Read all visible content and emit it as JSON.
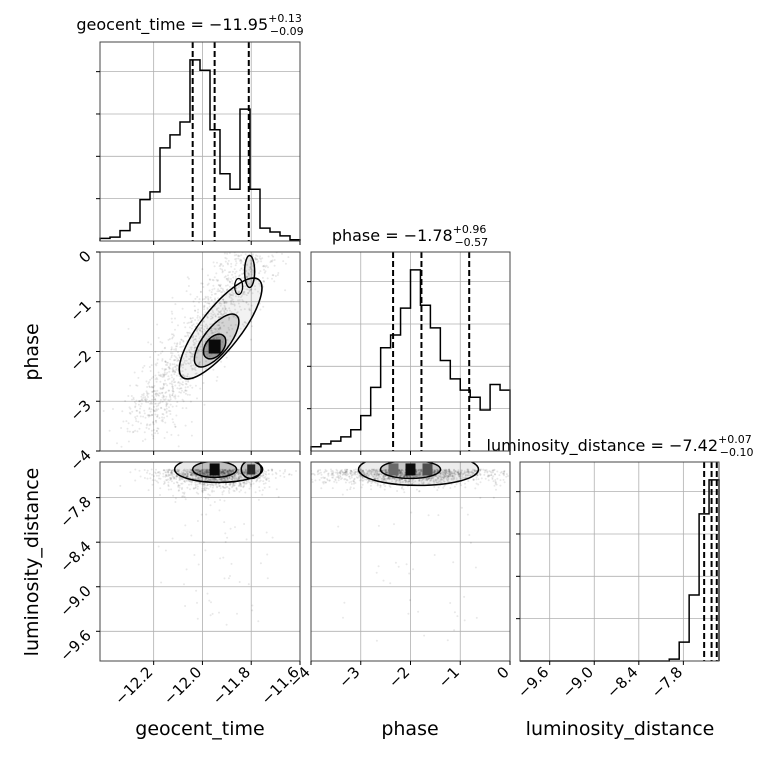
{
  "chart_data": {
    "type": "corner",
    "parameters": [
      "geocent_time",
      "phase",
      "luminosity_distance"
    ],
    "titles": {
      "geocent_time": {
        "name": "geocent_time",
        "median": "−11.95",
        "plus": "+0.13",
        "minus": "−0.09"
      },
      "phase": {
        "name": "phase",
        "median": "−1.78",
        "plus": "+0.96",
        "minus": "−0.57"
      },
      "luminosity_distance": {
        "name": "luminosity_distance",
        "median": "−7.42",
        "plus": "+0.07",
        "minus": "−0.10"
      }
    },
    "axis_labels": {
      "x": [
        "geocent_time",
        "phase",
        "luminosity_distance"
      ],
      "y": [
        "phase",
        "luminosity_distance"
      ]
    },
    "ranges": {
      "geocent_time": [
        -12.42,
        -11.6
      ],
      "phase": [
        -4.0,
        0.0
      ],
      "luminosity_distance": [
        -10.0,
        -7.32
      ]
    },
    "ticks": {
      "geocent_time": [
        -12.2,
        -12.0,
        -11.8,
        -11.6
      ],
      "geocent_time_labels": [
        "−12.2",
        "−12.0",
        "−11.8",
        "−11.6"
      ],
      "phase": [
        -4,
        -3,
        -2,
        -1,
        0
      ],
      "phase_labels": [
        "−4",
        "−3",
        "−2",
        "−1",
        "0"
      ],
      "luminosity_distance": [
        -9.6,
        -9.0,
        -8.4,
        -7.8
      ],
      "luminosity_distance_labels": [
        "−9.6",
        "−9.0",
        "−8.4",
        "−7.8"
      ]
    },
    "quantiles": {
      "geocent_time": [
        -12.04,
        -11.95,
        -11.81
      ],
      "phase": [
        -2.35,
        -1.78,
        -0.82
      ],
      "luminosity_distance": [
        -7.52,
        -7.42,
        -7.35
      ]
    },
    "histograms": {
      "geocent_time": {
        "edges": [
          -12.42,
          -12.379,
          -12.338,
          -12.297,
          -12.256,
          -12.215,
          -12.174,
          -12.133,
          -12.092,
          -12.051,
          -12.01,
          -11.969,
          -11.928,
          -11.887,
          -11.846,
          -11.805,
          -11.764,
          -11.723,
          -11.682,
          -11.641,
          -11.6
        ],
        "counts": [
          0.2,
          0.3,
          0.8,
          1.4,
          3.2,
          3.8,
          7.2,
          8.2,
          9.2,
          14.0,
          13.2,
          8.6,
          5.2,
          4.0,
          10.2,
          4.0,
          1.0,
          0.7,
          0.4,
          0.1
        ]
      },
      "phase": {
        "edges": [
          -4.0,
          -3.8,
          -3.6,
          -3.4,
          -3.2,
          -3.0,
          -2.8,
          -2.6,
          -2.4,
          -2.2,
          -2.0,
          -1.8,
          -1.6,
          -1.4,
          -1.2,
          -1.0,
          -0.8,
          -0.6,
          -0.4,
          -0.2,
          0.0
        ],
        "counts": [
          0.3,
          0.5,
          0.7,
          1.0,
          1.5,
          2.5,
          4.5,
          7.3,
          8.2,
          10.1,
          12.8,
          10.3,
          8.7,
          6.4,
          5.1,
          4.3,
          3.8,
          2.9,
          4.7,
          4.3
        ]
      },
      "luminosity_distance": {
        "edges": [
          -10.0,
          -9.866,
          -9.732,
          -9.598,
          -9.464,
          -9.33,
          -9.196,
          -9.062,
          -8.928,
          -8.794,
          -8.66,
          -8.526,
          -8.392,
          -8.258,
          -8.124,
          -7.99,
          -7.856,
          -7.722,
          -7.588,
          -7.454,
          -7.32
        ],
        "counts": [
          0,
          0,
          0,
          0,
          0,
          0,
          0,
          0,
          0,
          0,
          0,
          0,
          0,
          0,
          0,
          0.1,
          1.0,
          3.5,
          7.8,
          9.6
        ]
      }
    },
    "joint_modes": [
      {
        "x": "geocent_time",
        "y": "phase",
        "mode_x": -11.95,
        "mode_y": -1.9
      },
      {
        "x": "geocent_time",
        "y": "luminosity_distance",
        "mode_x": -11.95,
        "mode_y": -7.42
      },
      {
        "x": "phase",
        "y": "luminosity_distance",
        "mode_x": -2.0,
        "mode_y": -7.42
      }
    ],
    "grid": true
  }
}
